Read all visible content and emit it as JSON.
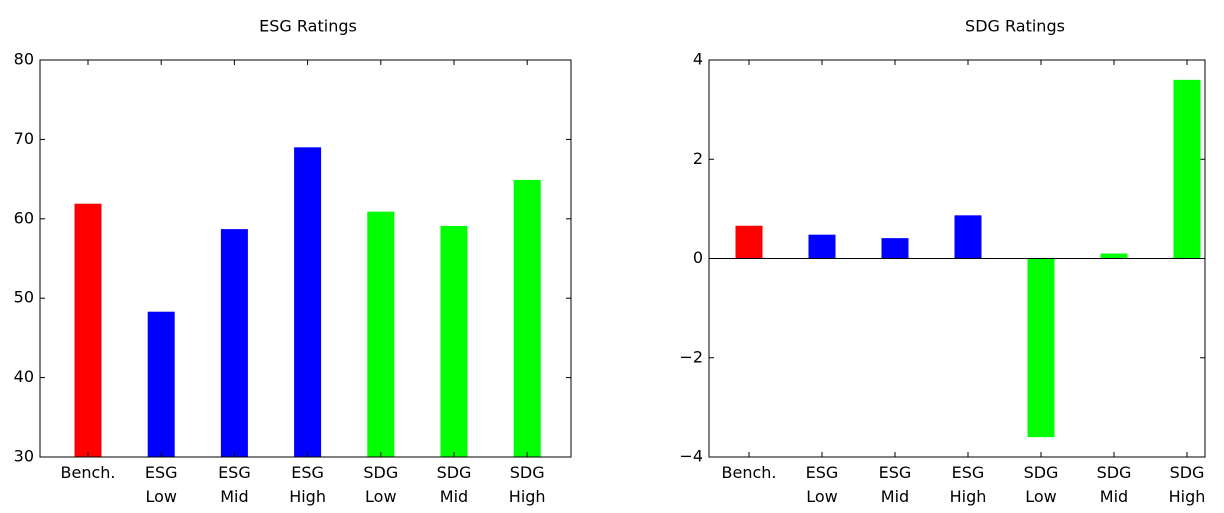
{
  "chart_data": [
    {
      "type": "bar",
      "title": "ESG Ratings",
      "categories": [
        "Bench.",
        "ESG Low",
        "ESG Mid",
        "ESG High",
        "SDG Low",
        "SDG Mid",
        "SDG High"
      ],
      "values": [
        61.9,
        48.3,
        58.7,
        69,
        60.9,
        59.1,
        64.9
      ],
      "colors": [
        "#ff0000",
        "#0000ff",
        "#0000ff",
        "#0000ff",
        "#00ff00",
        "#00ff00",
        "#00ff00"
      ],
      "ylim": [
        30,
        80
      ],
      "yticks": [
        30,
        40,
        50,
        60,
        70,
        80
      ]
    },
    {
      "type": "bar",
      "title": "SDG Ratings",
      "categories": [
        "Bench.",
        "ESG Low",
        "ESG Mid",
        "ESG High",
        "SDG Low",
        "SDG Mid",
        "SDG High"
      ],
      "values": [
        0.66,
        0.48,
        0.41,
        0.87,
        -3.6,
        0.1,
        3.6
      ],
      "colors": [
        "#ff0000",
        "#0000ff",
        "#0000ff",
        "#0000ff",
        "#00ff00",
        "#00ff00",
        "#00ff00"
      ],
      "ylim": [
        -4,
        4
      ],
      "yticks": [
        {
          "value": -4,
          "label": "−4"
        },
        {
          "value": -2,
          "label": "−2"
        },
        0,
        2,
        4
      ]
    }
  ]
}
